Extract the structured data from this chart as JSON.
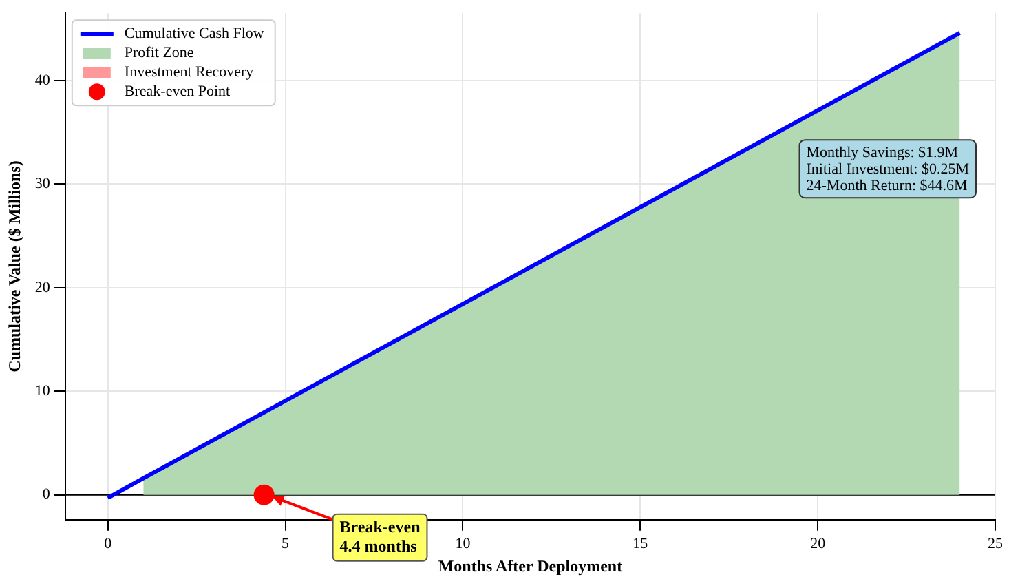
{
  "chart_data": {
    "type": "line",
    "xlabel": "Months After Deployment",
    "ylabel": "Cumulative Value ($ Millions)",
    "xlim": [
      -1.2,
      25
    ],
    "xticks": [
      0,
      5,
      10,
      15,
      20,
      25
    ],
    "ylim": [
      -2.4,
      46.5
    ],
    "yticks": [
      0,
      10,
      20,
      30,
      40
    ],
    "grid": true,
    "legend": "top left",
    "series": [
      {
        "name": "Cumulative Cash Flow",
        "type": "line",
        "color": "#0000ff",
        "x": [
          0,
          1,
          24
        ],
        "values": [
          -0.3,
          1.6,
          44.6
        ]
      },
      {
        "name": "Profit Zone",
        "type": "area",
        "color": "#b3d9b3",
        "x": [
          1,
          24
        ],
        "values": [
          1.6,
          44.6
        ]
      },
      {
        "name": "Investment Recovery",
        "type": "area",
        "color": "#ff9999"
      },
      {
        "name": "Break-even Point",
        "type": "scatter",
        "color": "#ff0000",
        "x": [
          4.4
        ],
        "values": [
          0
        ]
      }
    ],
    "ref_lines": [
      {
        "axis": "y",
        "value": 0,
        "color": "#000000"
      }
    ],
    "annotations": [
      {
        "text": "Break-even\n4.4 months",
        "x": 4.4,
        "y": 0
      },
      "Monthly Savings: $1.9M\nInitial Investment: $0.25M\n24-Month Return: $44.6M"
    ]
  }
}
